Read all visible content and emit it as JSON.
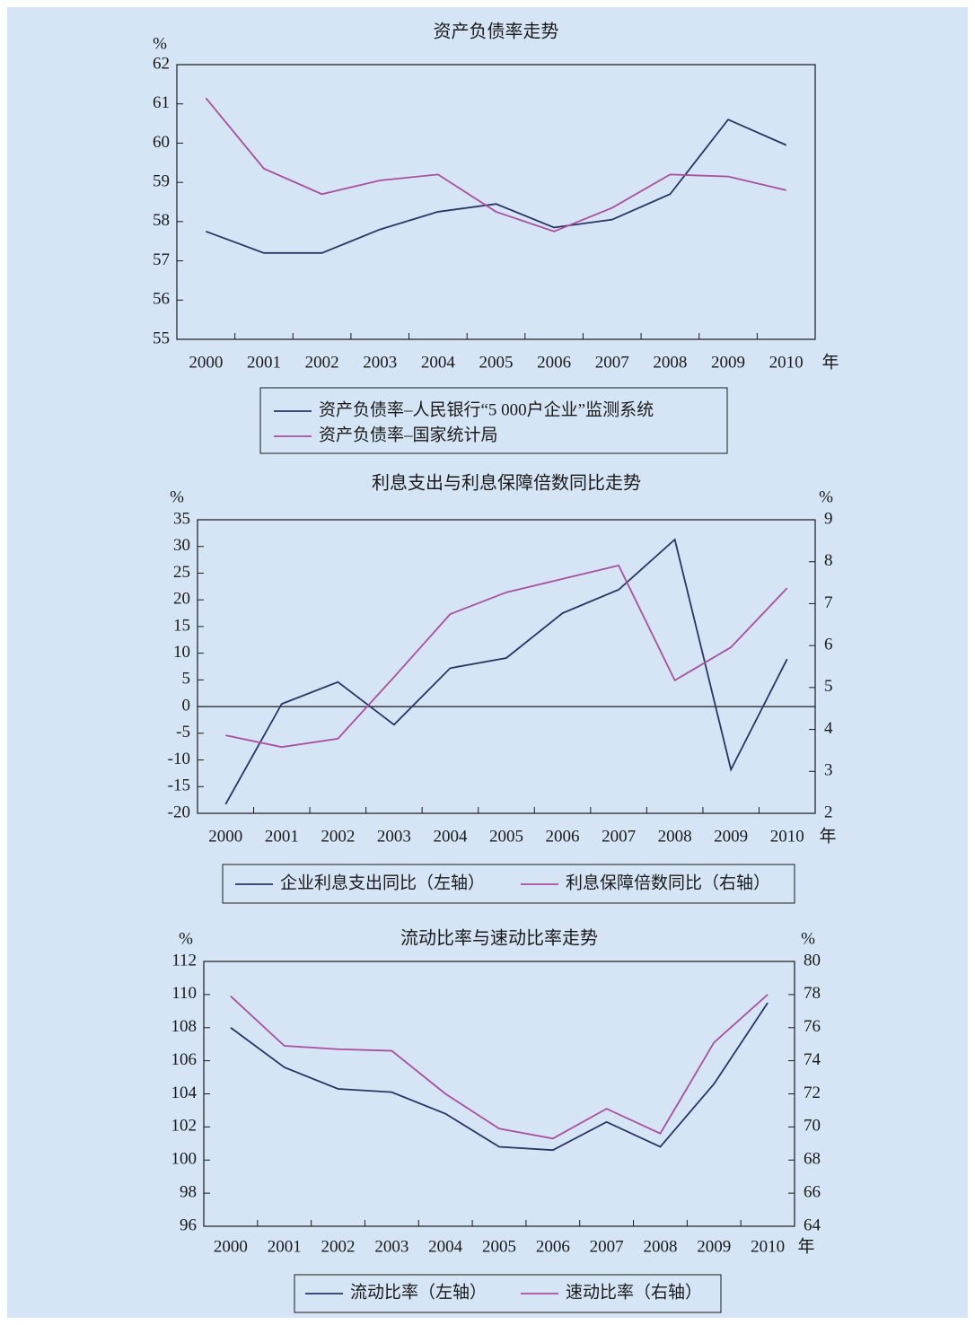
{
  "chart_data": [
    {
      "type": "line",
      "title": "资产负债率走势",
      "y_label": "%",
      "x_label": "年",
      "categories": [
        "2000",
        "2001",
        "2002",
        "2003",
        "2004",
        "2005",
        "2006",
        "2007",
        "2008",
        "2009",
        "2010"
      ],
      "ylim": [
        55,
        62
      ],
      "yticks": [
        55,
        56,
        57,
        58,
        59,
        60,
        61,
        62
      ],
      "series": [
        {
          "name": "资产负债率–人民银行“5 000户企业”监测系统",
          "color": "#2b3463",
          "values": [
            57.75,
            57.2,
            57.2,
            57.8,
            58.25,
            58.45,
            57.85,
            58.05,
            58.7,
            60.6,
            59.95
          ]
        },
        {
          "name": "资产负债率–国家统计局",
          "color": "#a9509c",
          "values": [
            61.15,
            59.35,
            58.7,
            59.05,
            59.2,
            58.25,
            57.75,
            58.35,
            59.2,
            59.15,
            58.8
          ]
        }
      ]
    },
    {
      "type": "line",
      "title": "利息支出与利息保障倍数同比走势",
      "y_label": "%",
      "y2_label": "%",
      "x_label": "年",
      "categories": [
        "2000",
        "2001",
        "2002",
        "2003",
        "2004",
        "2005",
        "2006",
        "2007",
        "2008",
        "2009",
        "2010"
      ],
      "ylim": [
        -20,
        35
      ],
      "yticks": [
        -20,
        -15,
        -10,
        -5,
        0,
        5,
        10,
        15,
        20,
        25,
        30,
        35
      ],
      "y2lim": [
        2,
        9
      ],
      "y2ticks": [
        2,
        3,
        4,
        5,
        6,
        7,
        8,
        9
      ],
      "series": [
        {
          "name": "企业利息支出同比（左轴）",
          "color": "#2b3463",
          "values": [
            -18.3,
            0.5,
            4.6,
            -3.4,
            7.2,
            9.1,
            17.5,
            21.9,
            31.3,
            -11.8,
            8.9
          ]
        },
        {
          "name": "利息保障倍数同比（右轴）",
          "color": "#a9509c",
          "axis": "y2",
          "values": [
            3.86,
            3.58,
            3.78,
            5.25,
            6.75,
            7.27,
            7.59,
            7.91,
            5.17,
            5.96,
            7.37
          ]
        }
      ]
    },
    {
      "type": "line",
      "title": "流动比率与速动比率走势",
      "y_label": "%",
      "y2_label": "%",
      "x_label": "年",
      "categories": [
        "2000",
        "2001",
        "2002",
        "2003",
        "2004",
        "2005",
        "2006",
        "2007",
        "2008",
        "2009",
        "2010"
      ],
      "ylim": [
        96,
        112
      ],
      "yticks": [
        96,
        98,
        100,
        102,
        104,
        106,
        108,
        110,
        112
      ],
      "y2lim": [
        64,
        80
      ],
      "y2ticks": [
        64,
        66,
        68,
        70,
        72,
        74,
        76,
        78,
        80
      ],
      "series": [
        {
          "name": "流动比率（左轴）",
          "color": "#2b3463",
          "values": [
            108.0,
            105.6,
            104.3,
            104.1,
            102.8,
            100.8,
            100.6,
            102.3,
            100.8,
            104.6,
            109.5
          ]
        },
        {
          "name": "速动比率（右轴）",
          "color": "#a9509c",
          "axis": "y2",
          "values": [
            77.9,
            74.9,
            74.7,
            74.6,
            72.0,
            69.9,
            69.3,
            71.1,
            69.6,
            75.1,
            78.0
          ]
        }
      ]
    }
  ]
}
